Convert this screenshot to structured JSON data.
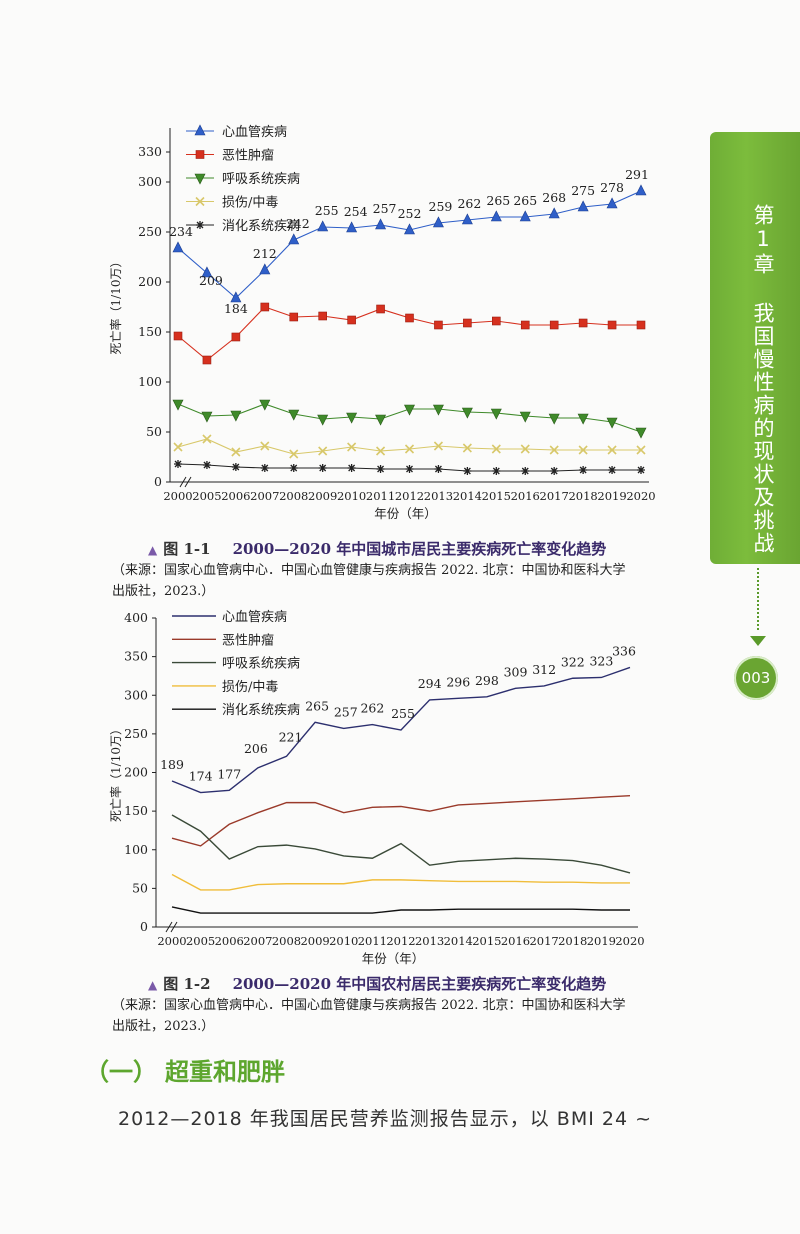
{
  "chapter": {
    "tab_text": "第1章 我国慢性病的现状及挑战",
    "page_number": "003",
    "accent_color": "#6aa532"
  },
  "chart_data": [
    {
      "type": "line",
      "ylabel": "死亡率（1/10万）",
      "xlabel": "年份（年）",
      "ylim": [
        0,
        330
      ],
      "yticks": [
        0,
        50,
        100,
        150,
        200,
        250,
        300,
        330
      ],
      "categories": [
        "2000",
        "2005",
        "2006",
        "2007",
        "2008",
        "2009",
        "2010",
        "2011",
        "2012",
        "2013",
        "2014",
        "2015",
        "2016",
        "2017",
        "2018",
        "2019",
        "2020"
      ],
      "legend_position": "top-left",
      "series": [
        {
          "name": "心血管疾病",
          "marker": "triangle-up",
          "color": "#2f5fc8",
          "values": [
            234,
            209,
            184,
            212,
            242,
            255,
            254,
            257,
            252,
            259,
            262,
            265,
            265,
            268,
            275,
            278,
            291
          ],
          "labels": [
            "234",
            "209",
            "184",
            "212",
            "242",
            "255",
            "254",
            "257",
            "252",
            "259",
            "262",
            "265",
            "265",
            "268",
            "275",
            "278",
            "291"
          ]
        },
        {
          "name": "恶性肿瘤",
          "marker": "square",
          "color": "#d6301e",
          "values": [
            146,
            122,
            145,
            175,
            165,
            166,
            162,
            173,
            164,
            157,
            159,
            161,
            157,
            157,
            159,
            157,
            157
          ]
        },
        {
          "name": "呼吸系统疾病",
          "marker": "triangle-down",
          "color": "#3f8a2a",
          "values": [
            78,
            66,
            67,
            78,
            68,
            63,
            65,
            63,
            73,
            73,
            70,
            69,
            66,
            64,
            64,
            60,
            50
          ]
        },
        {
          "name": "损伤/中毒",
          "marker": "x",
          "color": "#d8c86a",
          "values": [
            35,
            43,
            30,
            36,
            28,
            31,
            35,
            31,
            33,
            36,
            34,
            33,
            33,
            32,
            32,
            32,
            32
          ]
        },
        {
          "name": "消化系统疾病",
          "marker": "star",
          "color": "#222222",
          "values": [
            18,
            17,
            15,
            14,
            14,
            14,
            14,
            13,
            13,
            13,
            11,
            11,
            11,
            11,
            12,
            12,
            12
          ]
        }
      ]
    },
    {
      "type": "line",
      "ylabel": "死亡率（1/10万）",
      "xlabel": "年份（年）",
      "ylim": [
        0,
        400
      ],
      "yticks": [
        0,
        50,
        100,
        150,
        200,
        250,
        300,
        350,
        400
      ],
      "categories": [
        "2000",
        "2005",
        "2006",
        "2007",
        "2008",
        "2009",
        "2010",
        "2011",
        "2012",
        "2013",
        "2014",
        "2015",
        "2016",
        "2017",
        "2018",
        "2019",
        "2020"
      ],
      "legend_position": "top-left",
      "series": [
        {
          "name": "心血管疾病",
          "color": "#2c2f6e",
          "values": [
            189,
            174,
            177,
            206,
            221,
            265,
            257,
            262,
            255,
            294,
            296,
            298,
            309,
            312,
            322,
            323,
            336
          ],
          "labels": [
            "189",
            "174",
            "177",
            "206",
            "221",
            "265",
            "257",
            "262",
            "255",
            "294",
            "296",
            "298",
            "309",
            "312",
            "322",
            "323",
            "336"
          ]
        },
        {
          "name": "恶性肿瘤",
          "color": "#9a3a2a",
          "values": [
            115,
            105,
            133,
            148,
            161,
            161,
            148,
            155,
            156,
            150,
            158,
            160,
            162,
            164,
            166,
            168,
            170
          ]
        },
        {
          "name": "呼吸系统疾病",
          "color": "#3a4a38",
          "values": [
            145,
            124,
            88,
            104,
            106,
            101,
            92,
            89,
            108,
            80,
            85,
            87,
            89,
            88,
            86,
            80,
            70
          ]
        },
        {
          "name": "损伤/中毒",
          "color": "#f0bd3a",
          "values": [
            68,
            48,
            48,
            55,
            56,
            56,
            56,
            61,
            61,
            60,
            59,
            59,
            59,
            58,
            58,
            57,
            57
          ]
        },
        {
          "name": "消化系统疾病",
          "color": "#111111",
          "values": [
            26,
            18,
            18,
            18,
            18,
            18,
            18,
            18,
            22,
            22,
            23,
            23,
            23,
            23,
            23,
            22,
            22
          ]
        }
      ]
    }
  ],
  "figure1": {
    "number": "图 1-1",
    "title": "2000—2020 年中国城市居民主要疾病死亡率变化趋势",
    "source_line1": "（来源：国家心血管病中心．中国心血管健康与疾病报告 2022. 北京：中国协和医科大学",
    "source_line2": "出版社，2023.）"
  },
  "figure2": {
    "number": "图 1-2",
    "title": "2000—2020 年中国农村居民主要疾病死亡率变化趋势",
    "source_line1": "（来源：国家心血管病中心．中国心血管健康与疾病报告 2022. 北京：中国协和医科大学",
    "source_line2": "出版社，2023.）"
  },
  "section": {
    "number": "（一）",
    "title": "超重和肥胖",
    "body_line": "2012—2018 年我国居民营养监测报告显示，以 BMI 24 ~"
  }
}
